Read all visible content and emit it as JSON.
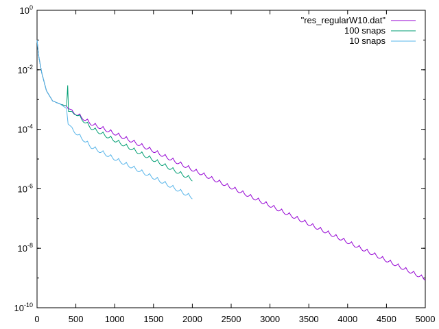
{
  "chart_data": {
    "type": "line",
    "title": "",
    "xlabel": "",
    "ylabel": "",
    "xlim": [
      0,
      5000
    ],
    "ylim": [
      1e-10,
      1
    ],
    "yscale": "log",
    "grid": false,
    "legend_position": "top-right",
    "x_ticks": [
      "0",
      "500",
      "1000",
      "1500",
      "2000",
      "2500",
      "3000",
      "3500",
      "4000",
      "4500",
      "5000"
    ],
    "y_ticks": [
      {
        "base": "10",
        "exp": "0",
        "value": 1
      },
      {
        "base": "10",
        "exp": "-2",
        "value": 0.01
      },
      {
        "base": "10",
        "exp": "-4",
        "value": 0.0001
      },
      {
        "base": "10",
        "exp": "-6",
        "value": 1e-06
      },
      {
        "base": "10",
        "exp": "-8",
        "value": 1e-08
      },
      {
        "base": "10",
        "exp": "-10",
        "value": 1e-10
      }
    ],
    "series": [
      {
        "name": "\"res_regularW10.dat\"",
        "color": "#9400d3",
        "points": [
          [
            0,
            0.1
          ],
          [
            20,
            0.03
          ],
          [
            60,
            0.008
          ],
          [
            120,
            0.002
          ],
          [
            200,
            0.0009
          ],
          [
            300,
            0.0007
          ],
          [
            380,
            0.0006
          ],
          [
            400,
            0.0005
          ],
          [
            500,
            0.0004
          ],
          [
            700,
            0.00018
          ],
          [
            1000,
            8.5e-05
          ],
          [
            1500,
            2.2e-05
          ],
          [
            2000,
            5.2e-06
          ],
          [
            2500,
            1.3e-06
          ],
          [
            3000,
            3.2e-07
          ],
          [
            3500,
            7.7e-08
          ],
          [
            4000,
            1.9e-08
          ],
          [
            4500,
            4.6e-09
          ],
          [
            5000,
            1.1e-09
          ]
        ]
      },
      {
        "name": "100 snaps",
        "color": "#009e73",
        "points": [
          [
            0,
            0.1
          ],
          [
            20,
            0.03
          ],
          [
            60,
            0.008
          ],
          [
            120,
            0.002
          ],
          [
            200,
            0.0009
          ],
          [
            300,
            0.0007
          ],
          [
            380,
            0.0006
          ],
          [
            395,
            0.003
          ],
          [
            405,
            0.0004
          ],
          [
            500,
            0.0004
          ],
          [
            700,
            0.00013
          ],
          [
            1000,
            5e-05
          ],
          [
            1500,
            1.1e-05
          ],
          [
            2000,
            2.4e-06
          ]
        ]
      },
      {
        "name": "10 snaps",
        "color": "#56b4e9",
        "points": [
          [
            0,
            0.1
          ],
          [
            20,
            0.03
          ],
          [
            60,
            0.008
          ],
          [
            120,
            0.002
          ],
          [
            200,
            0.0009
          ],
          [
            300,
            0.0007
          ],
          [
            380,
            0.0005
          ],
          [
            400,
            0.00015
          ],
          [
            500,
            9e-05
          ],
          [
            700,
            3e-05
          ],
          [
            1000,
            1.2e-05
          ],
          [
            1500,
            2.8e-06
          ],
          [
            2000,
            6e-07
          ]
        ]
      }
    ]
  }
}
